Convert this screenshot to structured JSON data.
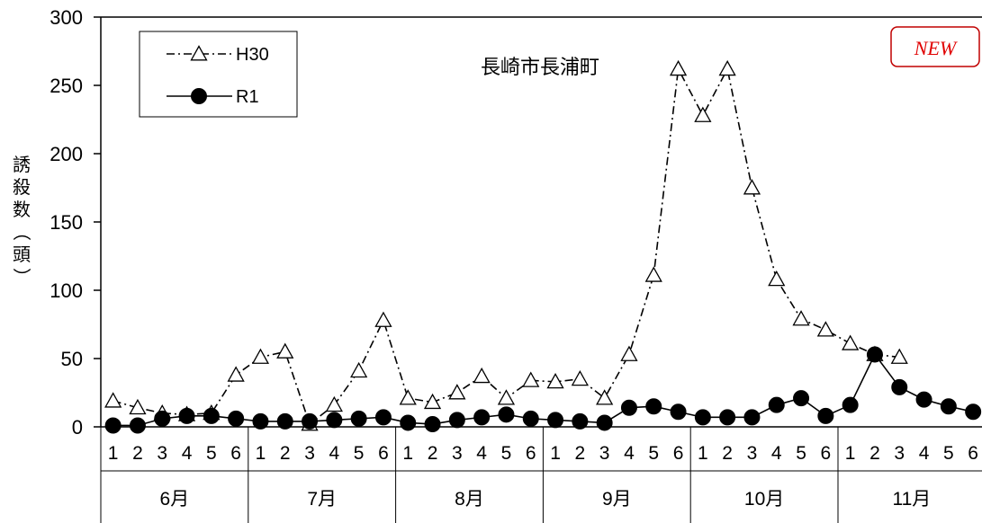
{
  "chart_data": {
    "type": "line",
    "title": "長崎市長浦町",
    "ylabel": "誘殺数（頭）",
    "ylim": [
      0,
      300
    ],
    "yticks": [
      0,
      50,
      100,
      150,
      200,
      250,
      300
    ],
    "categories": [
      "1",
      "2",
      "3",
      "4",
      "5",
      "6",
      "1",
      "2",
      "3",
      "4",
      "5",
      "6",
      "1",
      "2",
      "3",
      "4",
      "5",
      "6",
      "1",
      "2",
      "3",
      "4",
      "5",
      "6",
      "1",
      "2",
      "3",
      "4",
      "5",
      "6",
      "1",
      "2",
      "3",
      "4",
      "5",
      "6"
    ],
    "months": [
      "6月",
      "7月",
      "8月",
      "9月",
      "10月",
      "11月"
    ],
    "legend_position": "top-left",
    "series": [
      {
        "name": "H30",
        "style": "dash-dot",
        "marker": "open-triangle",
        "color": "#000000",
        "values": [
          19,
          14,
          10,
          9,
          10,
          38,
          51,
          55,
          2,
          16,
          41,
          78,
          21,
          18,
          25,
          37,
          21,
          34,
          33,
          35,
          21,
          53,
          111,
          262,
          228,
          262,
          175,
          108,
          79,
          71,
          61,
          53,
          51,
          null,
          null,
          null
        ]
      },
      {
        "name": "R1",
        "style": "solid",
        "marker": "filled-circle",
        "color": "#000000",
        "values": [
          1,
          1,
          6,
          8,
          8,
          6,
          4,
          4,
          4,
          5,
          6,
          7,
          3,
          2,
          5,
          7,
          9,
          6,
          5,
          4,
          3,
          14,
          15,
          11,
          7,
          7,
          7,
          16,
          21,
          8,
          16,
          53,
          29,
          20,
          15,
          11
        ]
      }
    ],
    "badge": "NEW"
  }
}
